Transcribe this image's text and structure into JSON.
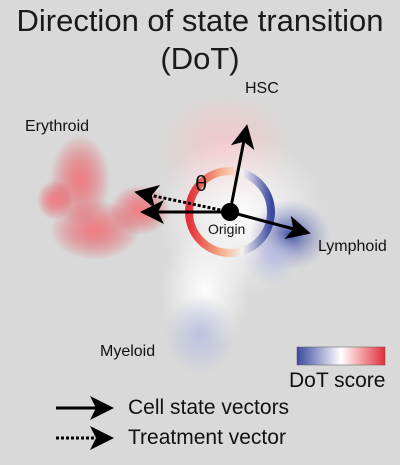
{
  "title_line1": "Direction of state transition",
  "title_line2": "(DoT)",
  "labels": {
    "hsc": "HSC",
    "erythroid": "Erythroid",
    "lymphoid": "Lymphoid",
    "myeloid": "Myeloid",
    "origin": "Origin",
    "theta": "θ"
  },
  "colorbar": {
    "label": "DoT score",
    "colors": [
      "#3a4aa0",
      "#ffffff",
      "#e2303a"
    ]
  },
  "legend": {
    "cell_state_vectors": "Cell state vectors",
    "treatment_vector": "Treatment vector"
  },
  "colors": {
    "background": "#d9d9d9",
    "arrow": "#000000",
    "positive": "#e2303a",
    "negative": "#3a4aa0"
  }
}
